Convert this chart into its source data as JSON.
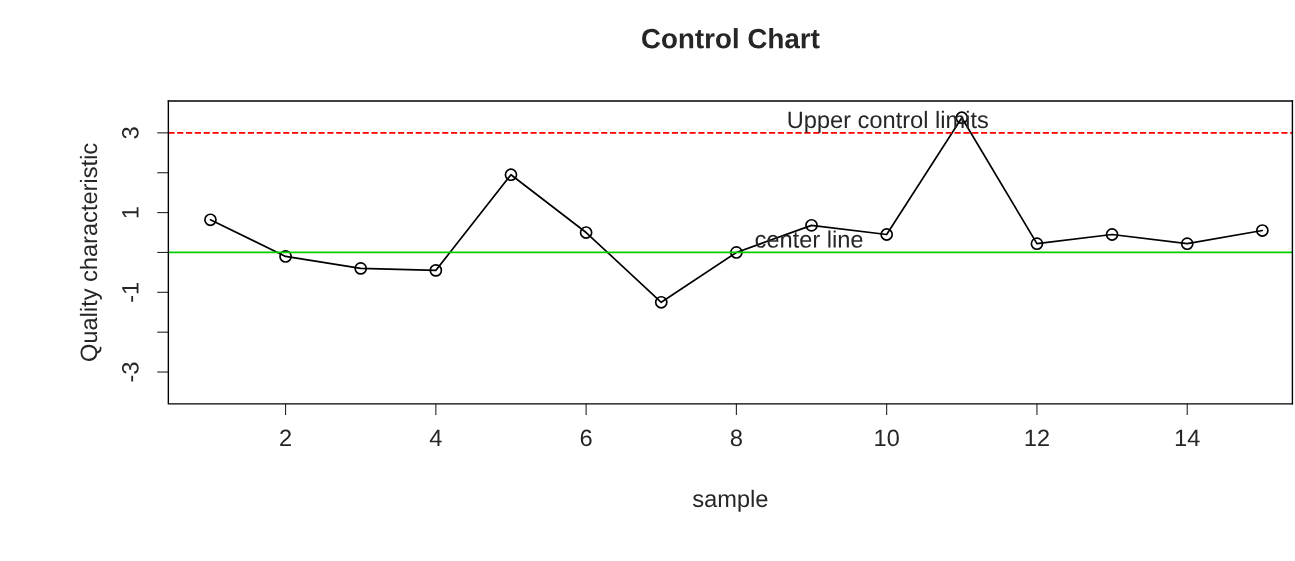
{
  "chart_data": {
    "type": "line",
    "title": "Control Chart",
    "xlabel": "sample",
    "ylabel": "Quality characteristic",
    "x": [
      1,
      2,
      3,
      4,
      5,
      6,
      7,
      8,
      9,
      10,
      11,
      12,
      13,
      14,
      15
    ],
    "series": [
      {
        "color": "#000000",
        "values": [
          0.82,
          -0.1,
          -0.4,
          -0.45,
          1.95,
          0.5,
          -1.25,
          0.0,
          0.68,
          0.45,
          3.38,
          0.22,
          0.45,
          0.22,
          0.55
        ]
      }
    ],
    "xlim": [
      0.44,
      15.4
    ],
    "ylim": [
      -3.8,
      3.8
    ],
    "xticks": [
      2,
      4,
      6,
      8,
      10,
      12,
      14
    ],
    "yticks": [
      -3,
      {
        "value": -2,
        "label": null
      },
      -1,
      {
        "value": 0,
        "label": null
      },
      1,
      {
        "value": 2,
        "label": null
      },
      3
    ],
    "ref_lines": [
      {
        "axis": "y",
        "value": 3,
        "color": "#ff0000",
        "line_style": "dashed",
        "label": "Upper control limits"
      },
      {
        "axis": "y",
        "value": 0,
        "color": "#00cd00",
        "line_style": "solid",
        "label": "center line"
      }
    ],
    "marker": "circle",
    "line_style": "solid",
    "grid": false
  }
}
